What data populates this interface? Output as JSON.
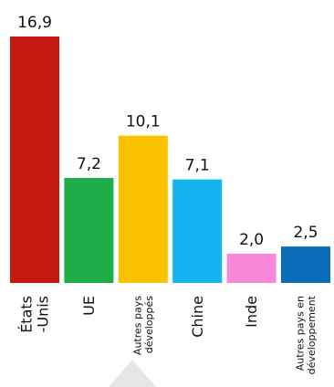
{
  "chart_data": {
    "type": "bar",
    "categories": [
      {
        "lines": [
          "États",
          "-Unis"
        ],
        "size": "large"
      },
      {
        "lines": [
          "UE"
        ],
        "size": "large"
      },
      {
        "lines": [
          "Autres pays",
          "développés"
        ],
        "size": "small"
      },
      {
        "lines": [
          "Chine"
        ],
        "size": "large"
      },
      {
        "lines": [
          "Inde"
        ],
        "size": "large"
      },
      {
        "lines": [
          "Autres pays en",
          "développement"
        ],
        "size": "small"
      }
    ],
    "values": [
      16.9,
      7.2,
      10.1,
      7.1,
      2.0,
      2.5
    ],
    "value_labels": [
      "16,9",
      "7,2",
      "10,1",
      "7,1",
      "2,0",
      "2,5"
    ],
    "colors": [
      "#c41a0f",
      "#1fad4a",
      "#fcc200",
      "#13b4f0",
      "#fa88da",
      "#0a6db7"
    ],
    "ylim": [
      0,
      16.9
    ],
    "grid": false,
    "legend": "none"
  }
}
